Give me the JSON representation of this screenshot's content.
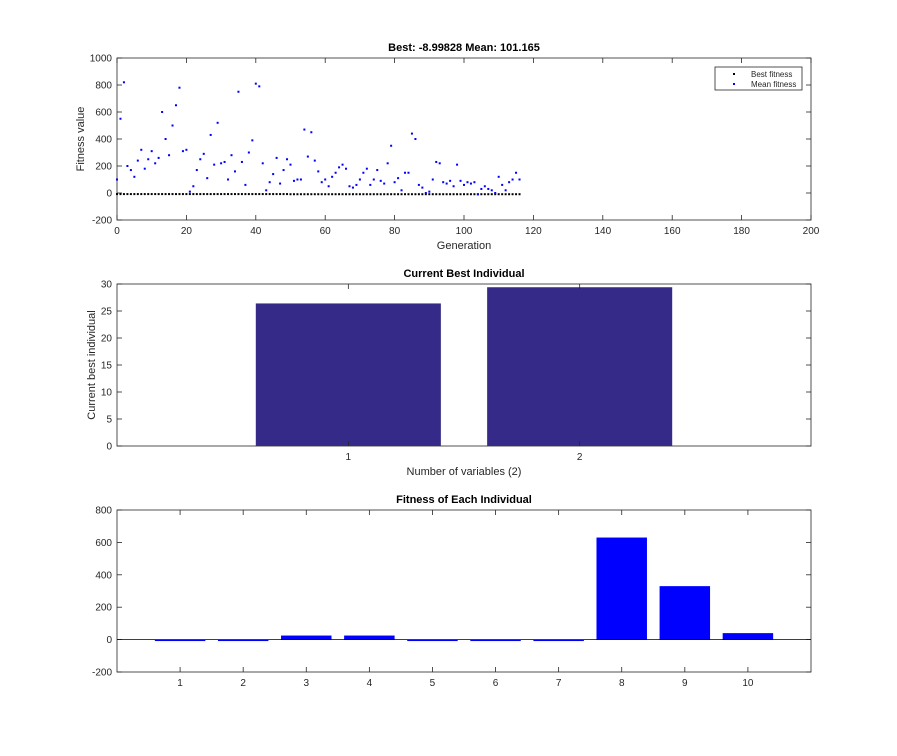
{
  "chart_data": [
    {
      "type": "scatter",
      "title": "Best: -8.99828 Mean: 101.165",
      "xlabel": "Generation",
      "ylabel": "Fitness value",
      "xlim": [
        0,
        200
      ],
      "ylim": [
        -200,
        1000
      ],
      "xticks": [
        "0",
        "20",
        "40",
        "60",
        "80",
        "100",
        "120",
        "140",
        "160",
        "180",
        "200"
      ],
      "yticks": [
        "-200",
        "0",
        "200",
        "400",
        "600",
        "800",
        "1000"
      ],
      "legend_position": "top-right",
      "series": [
        {
          "name": "Best fitness",
          "color": "#000000",
          "x": [
            0,
            1,
            2,
            3,
            4,
            5,
            6,
            7,
            8,
            9,
            10,
            11,
            12,
            13,
            14,
            15,
            16,
            17,
            18,
            19,
            20,
            21,
            22,
            23,
            24,
            25,
            26,
            27,
            28,
            29,
            30,
            31,
            32,
            33,
            34,
            35,
            36,
            37,
            38,
            39,
            40,
            41,
            42,
            43,
            44,
            45,
            46,
            47,
            48,
            49,
            50,
            51,
            52,
            53,
            54,
            55,
            56,
            57,
            58,
            59,
            60,
            61,
            62,
            63,
            64,
            65,
            66,
            67,
            68,
            69,
            70,
            71,
            72,
            73,
            74,
            75,
            76,
            77,
            78,
            79,
            80,
            81,
            82,
            83,
            84,
            85,
            86,
            87,
            88,
            89,
            90,
            91,
            92,
            93,
            94,
            95,
            96,
            97,
            98,
            99,
            100,
            101,
            102,
            103,
            104,
            105,
            106,
            107,
            108,
            109,
            110,
            111,
            112,
            113,
            114,
            115,
            116
          ],
          "y": [
            -8,
            -8,
            -8,
            -8,
            -8,
            -8,
            -8,
            -8,
            -8,
            -8,
            -8,
            -8,
            -8,
            -8,
            -8,
            -8,
            -8,
            -8,
            -8,
            -8,
            -8,
            -8,
            -8,
            -8,
            -8,
            -8,
            -8,
            -8,
            -8,
            -8,
            -8,
            -8,
            -8,
            -8,
            -8,
            -8,
            -8,
            -8,
            -8,
            -8,
            -8,
            -8,
            -8,
            -8,
            -8,
            -8,
            -8,
            -8,
            -8,
            -8,
            -9,
            -9,
            -9,
            -9,
            -9,
            -9,
            -9,
            -9,
            -9,
            -9,
            -9,
            -9,
            -9,
            -9,
            -9,
            -9,
            -9,
            -9,
            -9,
            -9,
            -9,
            -9,
            -9,
            -9,
            -9,
            -9,
            -9,
            -9,
            -9,
            -9,
            -9,
            -9,
            -9,
            -9,
            -9,
            -9,
            -9,
            -9,
            -9,
            -9,
            -9,
            -9,
            -9,
            -9,
            -9,
            -9,
            -9,
            -9,
            -9,
            -9,
            -9,
            -9,
            -9,
            -9,
            -9,
            -9,
            -9,
            -9,
            -9,
            -9,
            -9,
            -9,
            -9,
            -9,
            -9,
            -9,
            -9
          ]
        },
        {
          "name": "Mean fitness",
          "color": "#0000ff",
          "x": [
            0,
            1,
            2,
            3,
            4,
            5,
            6,
            7,
            8,
            9,
            10,
            11,
            12,
            13,
            14,
            15,
            16,
            17,
            18,
            19,
            20,
            21,
            22,
            23,
            24,
            25,
            26,
            27,
            28,
            29,
            30,
            31,
            32,
            33,
            34,
            35,
            36,
            37,
            38,
            39,
            40,
            41,
            42,
            43,
            44,
            45,
            46,
            47,
            48,
            49,
            50,
            51,
            52,
            53,
            54,
            55,
            56,
            57,
            58,
            59,
            60,
            61,
            62,
            63,
            64,
            65,
            66,
            67,
            68,
            69,
            70,
            71,
            72,
            73,
            74,
            75,
            76,
            77,
            78,
            79,
            80,
            81,
            82,
            83,
            84,
            85,
            86,
            87,
            88,
            89,
            90,
            91,
            92,
            93,
            94,
            95,
            96,
            97,
            98,
            99,
            100,
            101,
            102,
            103,
            104,
            105,
            106,
            107,
            108,
            109,
            110,
            111,
            112,
            113,
            114,
            115,
            116
          ],
          "y": [
            100,
            550,
            820,
            200,
            170,
            120,
            240,
            320,
            180,
            250,
            310,
            220,
            260,
            600,
            400,
            280,
            500,
            650,
            780,
            310,
            320,
            10,
            50,
            170,
            250,
            290,
            110,
            430,
            210,
            520,
            220,
            230,
            100,
            280,
            160,
            750,
            230,
            60,
            300,
            390,
            810,
            790,
            220,
            20,
            80,
            140,
            260,
            70,
            170,
            250,
            210,
            90,
            100,
            100,
            470,
            270,
            450,
            240,
            160,
            80,
            100,
            50,
            120,
            150,
            190,
            210,
            180,
            50,
            40,
            60,
            100,
            150,
            180,
            60,
            100,
            170,
            90,
            70,
            220,
            350,
            80,
            110,
            20,
            150,
            150,
            440,
            400,
            60,
            40,
            0,
            10,
            100,
            230,
            220,
            80,
            70,
            90,
            50,
            210,
            90,
            60,
            80,
            70,
            80,
            -10,
            30,
            50,
            30,
            20,
            0,
            120,
            60,
            20,
            80,
            100,
            150,
            100
          ]
        }
      ]
    },
    {
      "type": "bar",
      "title": "Current Best Individual",
      "xlabel": "Number of variables (2)",
      "ylabel": "Current best individual",
      "categories": [
        "1",
        "2"
      ],
      "values": [
        26.4,
        29.4
      ],
      "ylim": [
        0,
        30
      ],
      "yticks": [
        "0",
        "5",
        "10",
        "15",
        "20",
        "25",
        "30"
      ],
      "color": "#352a87"
    },
    {
      "type": "bar",
      "title": "Fitness of Each Individual",
      "xlabel": "",
      "ylabel": "",
      "categories": [
        "1",
        "2",
        "3",
        "4",
        "5",
        "6",
        "7",
        "8",
        "9",
        "10"
      ],
      "values": [
        -9,
        -9,
        25,
        25,
        -9,
        -9,
        -9,
        630,
        330,
        40
      ],
      "ylim": [
        -200,
        800
      ],
      "yticks": [
        "-200",
        "0",
        "200",
        "400",
        "600",
        "800"
      ],
      "color": "#0000ff"
    }
  ]
}
